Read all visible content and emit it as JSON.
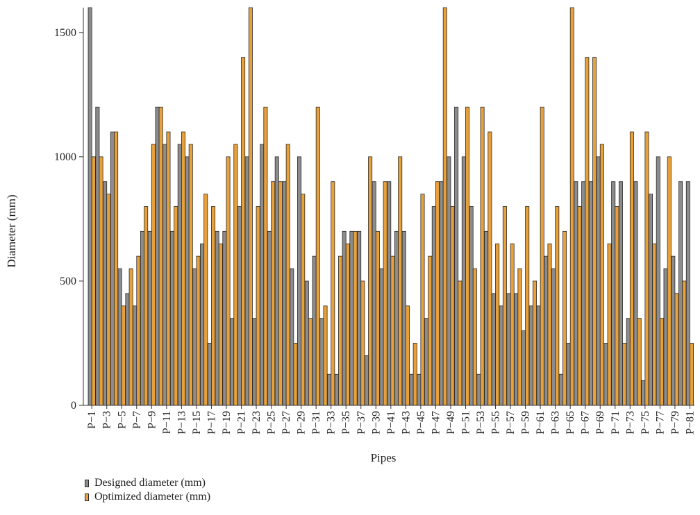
{
  "chart_data": {
    "type": "bar",
    "title": "",
    "xlabel": "Pipes",
    "ylabel": "Diameter (mm)",
    "ylim": [
      0,
      1600
    ],
    "yticks": [
      0,
      500,
      1000,
      1500
    ],
    "categories": [
      "P−1",
      "P−2",
      "P−3",
      "P−4",
      "P−5",
      "P−6",
      "P−7",
      "P−8",
      "P−9",
      "P−10",
      "P−11",
      "P−12",
      "P−13",
      "P−14",
      "P−15",
      "P−16",
      "P−17",
      "P−18",
      "P−19",
      "P−20",
      "P−21",
      "P−22",
      "P−23",
      "P−24",
      "P−25",
      "P−26",
      "P−27",
      "P−28",
      "P−29",
      "P−30",
      "P−31",
      "P−32",
      "P−33",
      "P−34",
      "P−35",
      "P−36",
      "P−37",
      "P−38",
      "P−39",
      "P−40",
      "P−41",
      "P−42",
      "P−43",
      "P−44",
      "P−45",
      "P−46",
      "P−47",
      "P−48",
      "P−49",
      "P−50",
      "P−51",
      "P−52",
      "P−53",
      "P−54",
      "P−55",
      "P−56",
      "P−57",
      "P−58",
      "P−59",
      "P−60",
      "P−61",
      "P−62",
      "P−63",
      "P−64",
      "P−65",
      "P−66",
      "P−67",
      "P−68",
      "P−69",
      "P−70",
      "P−71",
      "P−72",
      "P−73",
      "P−74",
      "P−75",
      "P−76",
      "P−77",
      "P−78",
      "P−79",
      "P−80",
      "P−81"
    ],
    "tick_labels_shown": [
      "P−1",
      "P−3",
      "P−5",
      "P−7",
      "P−9",
      "P−11",
      "P−13",
      "P−15",
      "P−17",
      "P−19",
      "P−21",
      "P−23",
      "P−25",
      "P−27",
      "P−29",
      "P−31",
      "P−33",
      "P−35",
      "P−37",
      "P−39",
      "P−41",
      "P−43",
      "P−45",
      "P−47",
      "P−49",
      "P−51",
      "P−53",
      "P−55",
      "P−57",
      "P−59",
      "P−61",
      "P−63",
      "P−65",
      "P−67",
      "P−69",
      "P−71",
      "P−73",
      "P−75",
      "P−77",
      "P−79",
      "P−81"
    ],
    "series": [
      {
        "name": "Designed diameter (mm)",
        "color": "#8c8c8c",
        "values": [
          1600,
          1200,
          900,
          1100,
          550,
          450,
          400,
          700,
          700,
          1200,
          1050,
          700,
          1050,
          1000,
          550,
          650,
          250,
          700,
          700,
          350,
          800,
          1000,
          350,
          1050,
          700,
          1000,
          900,
          550,
          1000,
          500,
          600,
          350,
          125,
          125,
          700,
          700,
          700,
          200,
          900,
          550,
          900,
          700,
          700,
          125,
          125,
          350,
          800,
          900,
          1000,
          1200,
          1000,
          800,
          125,
          700,
          450,
          400,
          450,
          450,
          300,
          400,
          400,
          600,
          550,
          125,
          250,
          900,
          900,
          900,
          1000,
          250,
          900,
          900,
          350,
          900,
          100,
          850,
          1000,
          550,
          600,
          900,
          900
        ]
      },
      {
        "name": "Optimized diameter (mm)",
        "color": "#e8a13a",
        "values": [
          1000,
          1000,
          850,
          1100,
          400,
          550,
          600,
          800,
          1050,
          1200,
          1100,
          800,
          1100,
          1050,
          600,
          850,
          800,
          650,
          1000,
          1050,
          1400,
          1600,
          800,
          1200,
          900,
          900,
          1050,
          250,
          850,
          350,
          1200,
          400,
          900,
          600,
          650,
          700,
          500,
          1000,
          700,
          900,
          600,
          1000,
          400,
          250,
          850,
          600,
          900,
          1600,
          800,
          500,
          1200,
          550,
          1200,
          1100,
          650,
          800,
          650,
          550,
          800,
          500,
          1200,
          650,
          800,
          700,
          1600,
          800,
          1400,
          1400,
          1050,
          650,
          800,
          250,
          1100,
          350,
          1100,
          650,
          350,
          1000,
          450,
          500,
          250
        ]
      }
    ],
    "legend_position": "bottom-left",
    "grid": false
  }
}
